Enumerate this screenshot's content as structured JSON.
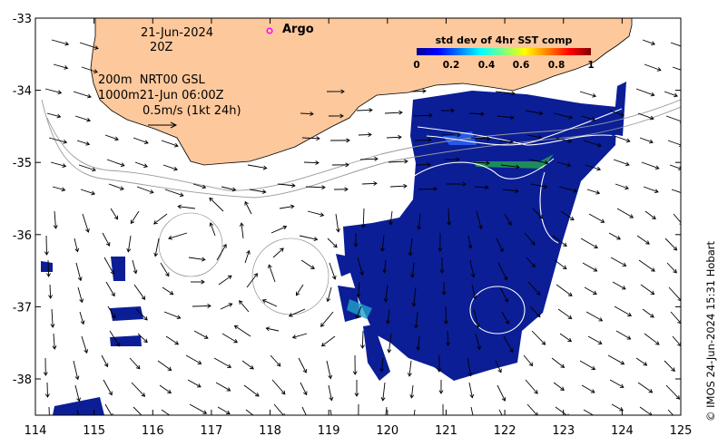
{
  "map": {
    "date_label": "21-Jun-2024",
    "time_label": "20Z",
    "legend_line1": "200m  NRT00 GSL",
    "legend_line2": "1000m21-Jun 06:00Z",
    "vector_scale_label": "0.5m/s (1kt 24h)",
    "argo_label": "Argo",
    "argo_marker_color": "#ff00ff",
    "land_color": "#fdc89c",
    "ocean_color": "#ffffff",
    "x_ticks": [
      "114",
      "115",
      "116",
      "117",
      "118",
      "119",
      "120",
      "121",
      "122",
      "123",
      "124",
      "125"
    ],
    "y_ticks": [
      "-33",
      "-34",
      "-35",
      "-36",
      "-37",
      "-38"
    ],
    "colorbar": {
      "title": "std dev of 4hr SST comp",
      "ticks": [
        "0",
        "0.2",
        "0.4",
        "0.6",
        "0.8",
        "1"
      ],
      "colors": [
        "#00008f",
        "#0000ff",
        "#0080ff",
        "#00ffff",
        "#80ff80",
        "#ffff00",
        "#ff8000",
        "#ff0000",
        "#800000"
      ]
    },
    "credit": "© IMOS 24-Jun-2024 15:31 Hobart"
  }
}
